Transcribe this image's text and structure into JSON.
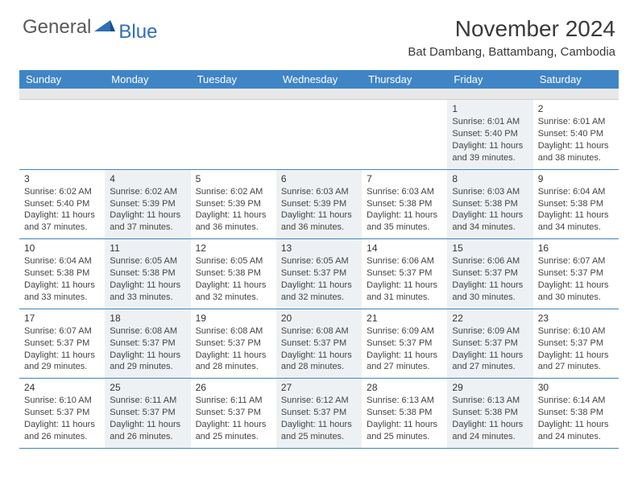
{
  "logo": {
    "part1": "General",
    "part2": "Blue"
  },
  "title": "November 2024",
  "subtitle": "Bat Dambang, Battambang, Cambodia",
  "header_color": "#3f85c6",
  "band_color": "#e8e8e8",
  "shade_color": "#eef1f3",
  "border_color": "#3f85c6",
  "days": [
    "Sunday",
    "Monday",
    "Tuesday",
    "Wednesday",
    "Thursday",
    "Friday",
    "Saturday"
  ],
  "weeks": [
    [
      {
        "empty": true
      },
      {
        "empty": true
      },
      {
        "empty": true
      },
      {
        "empty": true
      },
      {
        "empty": true
      },
      {
        "n": "1",
        "sr": "Sunrise: 6:01 AM",
        "ss": "Sunset: 5:40 PM",
        "d1": "Daylight: 11 hours",
        "d2": "and 39 minutes."
      },
      {
        "n": "2",
        "sr": "Sunrise: 6:01 AM",
        "ss": "Sunset: 5:40 PM",
        "d1": "Daylight: 11 hours",
        "d2": "and 38 minutes."
      }
    ],
    [
      {
        "n": "3",
        "sr": "Sunrise: 6:02 AM",
        "ss": "Sunset: 5:40 PM",
        "d1": "Daylight: 11 hours",
        "d2": "and 37 minutes."
      },
      {
        "n": "4",
        "sr": "Sunrise: 6:02 AM",
        "ss": "Sunset: 5:39 PM",
        "d1": "Daylight: 11 hours",
        "d2": "and 37 minutes."
      },
      {
        "n": "5",
        "sr": "Sunrise: 6:02 AM",
        "ss": "Sunset: 5:39 PM",
        "d1": "Daylight: 11 hours",
        "d2": "and 36 minutes."
      },
      {
        "n": "6",
        "sr": "Sunrise: 6:03 AM",
        "ss": "Sunset: 5:39 PM",
        "d1": "Daylight: 11 hours",
        "d2": "and 36 minutes."
      },
      {
        "n": "7",
        "sr": "Sunrise: 6:03 AM",
        "ss": "Sunset: 5:38 PM",
        "d1": "Daylight: 11 hours",
        "d2": "and 35 minutes."
      },
      {
        "n": "8",
        "sr": "Sunrise: 6:03 AM",
        "ss": "Sunset: 5:38 PM",
        "d1": "Daylight: 11 hours",
        "d2": "and 34 minutes."
      },
      {
        "n": "9",
        "sr": "Sunrise: 6:04 AM",
        "ss": "Sunset: 5:38 PM",
        "d1": "Daylight: 11 hours",
        "d2": "and 34 minutes."
      }
    ],
    [
      {
        "n": "10",
        "sr": "Sunrise: 6:04 AM",
        "ss": "Sunset: 5:38 PM",
        "d1": "Daylight: 11 hours",
        "d2": "and 33 minutes."
      },
      {
        "n": "11",
        "sr": "Sunrise: 6:05 AM",
        "ss": "Sunset: 5:38 PM",
        "d1": "Daylight: 11 hours",
        "d2": "and 33 minutes."
      },
      {
        "n": "12",
        "sr": "Sunrise: 6:05 AM",
        "ss": "Sunset: 5:38 PM",
        "d1": "Daylight: 11 hours",
        "d2": "and 32 minutes."
      },
      {
        "n": "13",
        "sr": "Sunrise: 6:05 AM",
        "ss": "Sunset: 5:37 PM",
        "d1": "Daylight: 11 hours",
        "d2": "and 32 minutes."
      },
      {
        "n": "14",
        "sr": "Sunrise: 6:06 AM",
        "ss": "Sunset: 5:37 PM",
        "d1": "Daylight: 11 hours",
        "d2": "and 31 minutes."
      },
      {
        "n": "15",
        "sr": "Sunrise: 6:06 AM",
        "ss": "Sunset: 5:37 PM",
        "d1": "Daylight: 11 hours",
        "d2": "and 30 minutes."
      },
      {
        "n": "16",
        "sr": "Sunrise: 6:07 AM",
        "ss": "Sunset: 5:37 PM",
        "d1": "Daylight: 11 hours",
        "d2": "and 30 minutes."
      }
    ],
    [
      {
        "n": "17",
        "sr": "Sunrise: 6:07 AM",
        "ss": "Sunset: 5:37 PM",
        "d1": "Daylight: 11 hours",
        "d2": "and 29 minutes."
      },
      {
        "n": "18",
        "sr": "Sunrise: 6:08 AM",
        "ss": "Sunset: 5:37 PM",
        "d1": "Daylight: 11 hours",
        "d2": "and 29 minutes."
      },
      {
        "n": "19",
        "sr": "Sunrise: 6:08 AM",
        "ss": "Sunset: 5:37 PM",
        "d1": "Daylight: 11 hours",
        "d2": "and 28 minutes."
      },
      {
        "n": "20",
        "sr": "Sunrise: 6:08 AM",
        "ss": "Sunset: 5:37 PM",
        "d1": "Daylight: 11 hours",
        "d2": "and 28 minutes."
      },
      {
        "n": "21",
        "sr": "Sunrise: 6:09 AM",
        "ss": "Sunset: 5:37 PM",
        "d1": "Daylight: 11 hours",
        "d2": "and 27 minutes."
      },
      {
        "n": "22",
        "sr": "Sunrise: 6:09 AM",
        "ss": "Sunset: 5:37 PM",
        "d1": "Daylight: 11 hours",
        "d2": "and 27 minutes."
      },
      {
        "n": "23",
        "sr": "Sunrise: 6:10 AM",
        "ss": "Sunset: 5:37 PM",
        "d1": "Daylight: 11 hours",
        "d2": "and 27 minutes."
      }
    ],
    [
      {
        "n": "24",
        "sr": "Sunrise: 6:10 AM",
        "ss": "Sunset: 5:37 PM",
        "d1": "Daylight: 11 hours",
        "d2": "and 26 minutes."
      },
      {
        "n": "25",
        "sr": "Sunrise: 6:11 AM",
        "ss": "Sunset: 5:37 PM",
        "d1": "Daylight: 11 hours",
        "d2": "and 26 minutes."
      },
      {
        "n": "26",
        "sr": "Sunrise: 6:11 AM",
        "ss": "Sunset: 5:37 PM",
        "d1": "Daylight: 11 hours",
        "d2": "and 25 minutes."
      },
      {
        "n": "27",
        "sr": "Sunrise: 6:12 AM",
        "ss": "Sunset: 5:37 PM",
        "d1": "Daylight: 11 hours",
        "d2": "and 25 minutes."
      },
      {
        "n": "28",
        "sr": "Sunrise: 6:13 AM",
        "ss": "Sunset: 5:38 PM",
        "d1": "Daylight: 11 hours",
        "d2": "and 25 minutes."
      },
      {
        "n": "29",
        "sr": "Sunrise: 6:13 AM",
        "ss": "Sunset: 5:38 PM",
        "d1": "Daylight: 11 hours",
        "d2": "and 24 minutes."
      },
      {
        "n": "30",
        "sr": "Sunrise: 6:14 AM",
        "ss": "Sunset: 5:38 PM",
        "d1": "Daylight: 11 hours",
        "d2": "and 24 minutes."
      }
    ]
  ]
}
